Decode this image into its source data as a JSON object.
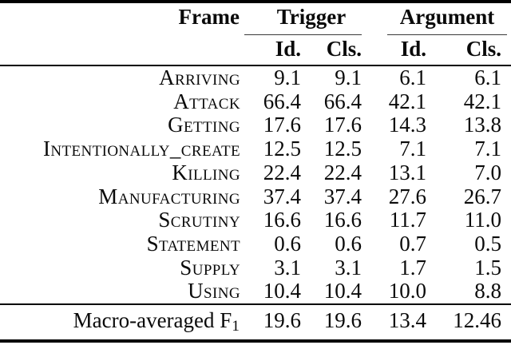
{
  "table": {
    "frame_header": "Frame",
    "trigger_header": "Trigger",
    "argument_header": "Argument",
    "subheaders": {
      "trigger_id": "Id.",
      "trigger_cls": "Cls.",
      "argument_id": "Id.",
      "argument_cls": "Cls."
    },
    "rows": [
      {
        "frame": "Arriving",
        "values": [
          "9.1",
          "9.1",
          "6.1",
          "6.1"
        ]
      },
      {
        "frame": "Attack",
        "values": [
          "66.4",
          "66.4",
          "42.1",
          "42.1"
        ]
      },
      {
        "frame": "Getting",
        "values": [
          "17.6",
          "17.6",
          "14.3",
          "13.8"
        ]
      },
      {
        "frame": "Intentionally_create",
        "values": [
          "12.5",
          "12.5",
          "7.1",
          "7.1"
        ]
      },
      {
        "frame": "Killing",
        "values": [
          "22.4",
          "22.4",
          "13.1",
          "7.0"
        ]
      },
      {
        "frame": "Manufacturing",
        "values": [
          "37.4",
          "37.4",
          "27.6",
          "26.7"
        ]
      },
      {
        "frame": "Scrutiny",
        "values": [
          "16.6",
          "16.6",
          "11.7",
          "11.0"
        ]
      },
      {
        "frame": "Statement",
        "values": [
          "0.6",
          "0.6",
          "0.7",
          "0.5"
        ]
      },
      {
        "frame": "Supply",
        "values": [
          "3.1",
          "3.1",
          "1.7",
          "1.5"
        ]
      },
      {
        "frame": "Using",
        "values": [
          "10.4",
          "10.4",
          "10.0",
          "8.8"
        ]
      }
    ],
    "footer": {
      "label_main": "Macro-averaged F",
      "label_sub": "1",
      "values": [
        "19.6",
        "19.6",
        "13.4",
        "12.46"
      ]
    },
    "colors": {
      "text": "#0a0a0a",
      "rule": "#000000",
      "cmidrule": "#3a3a3a",
      "background": "#ffffff"
    }
  }
}
